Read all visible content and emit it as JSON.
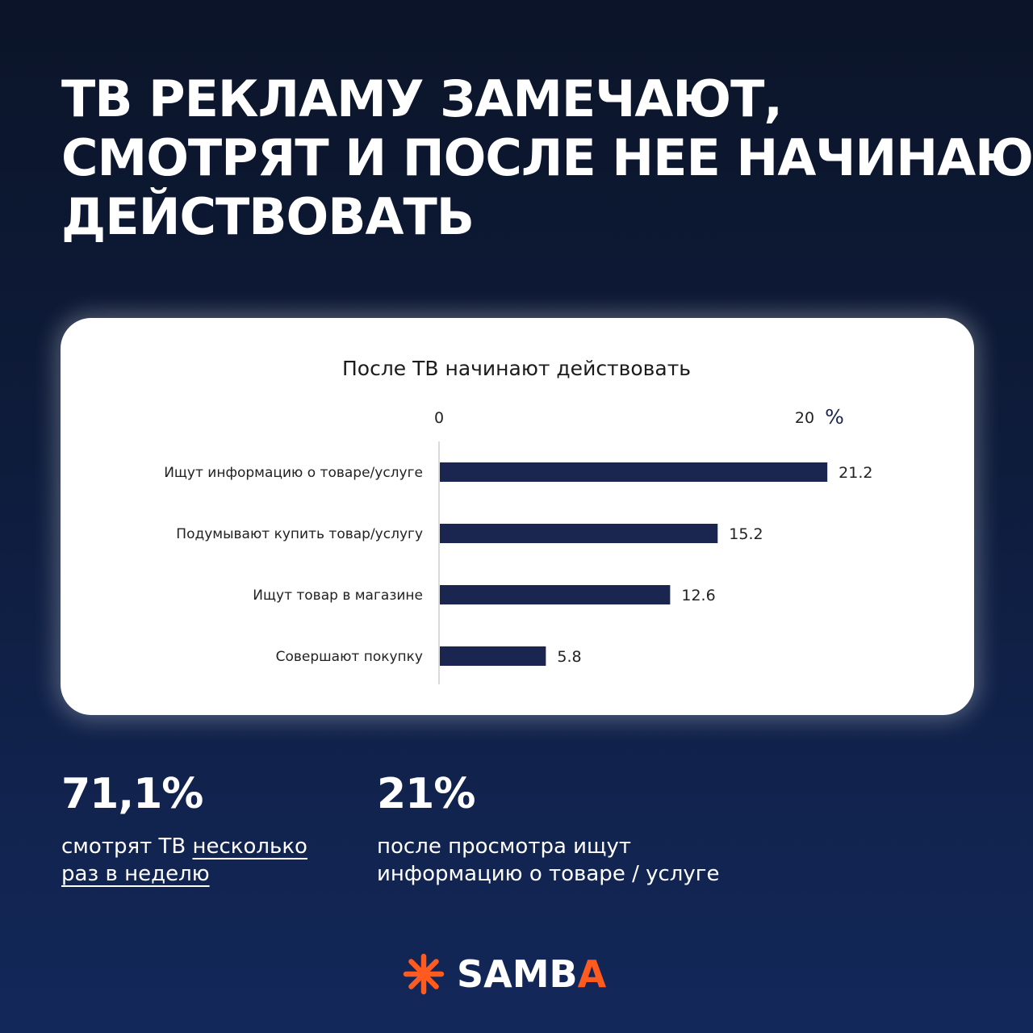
{
  "headline": {
    "lines": [
      "ТВ РЕКЛАМУ ЗАМЕЧАЮТ,",
      "СМОТРЯТ И ПОСЛЕ НЕЕ НАЧИНАЮТ",
      "ДЕЙСТВОВАТЬ"
    ]
  },
  "chart_data": {
    "type": "bar",
    "orientation": "horizontal",
    "title": "После ТВ начинают действовать",
    "categories": [
      "Ищут информацию о товаре/услуге",
      "Подумывают купить товар/услугу",
      "Ищут товар в магазине",
      "Совершают покупку"
    ],
    "values": [
      21.2,
      15.2,
      12.6,
      5.8
    ],
    "value_labels": [
      "21.2",
      "15.2",
      "12.6",
      "5.8"
    ],
    "axis_ticks": [
      "0",
      "20"
    ],
    "axis_unit": "%",
    "xlim": [
      0,
      20
    ],
    "grid": false,
    "bar_color": "#1a2550"
  },
  "stats": [
    {
      "value": "71,1%",
      "text_plain": "смотрят ТВ ",
      "text_underlined_1": "несколько",
      "text_underlined_2": "раз в неделю"
    },
    {
      "value": "21%",
      "text_line_1": "после просмотра ищут",
      "text_line_2": "информацию о товаре / услуге"
    }
  ],
  "logo": {
    "text_main": "SAMB",
    "text_accent": "A",
    "icon": "asterisk-icon",
    "accent_color": "#ff5a1f"
  }
}
